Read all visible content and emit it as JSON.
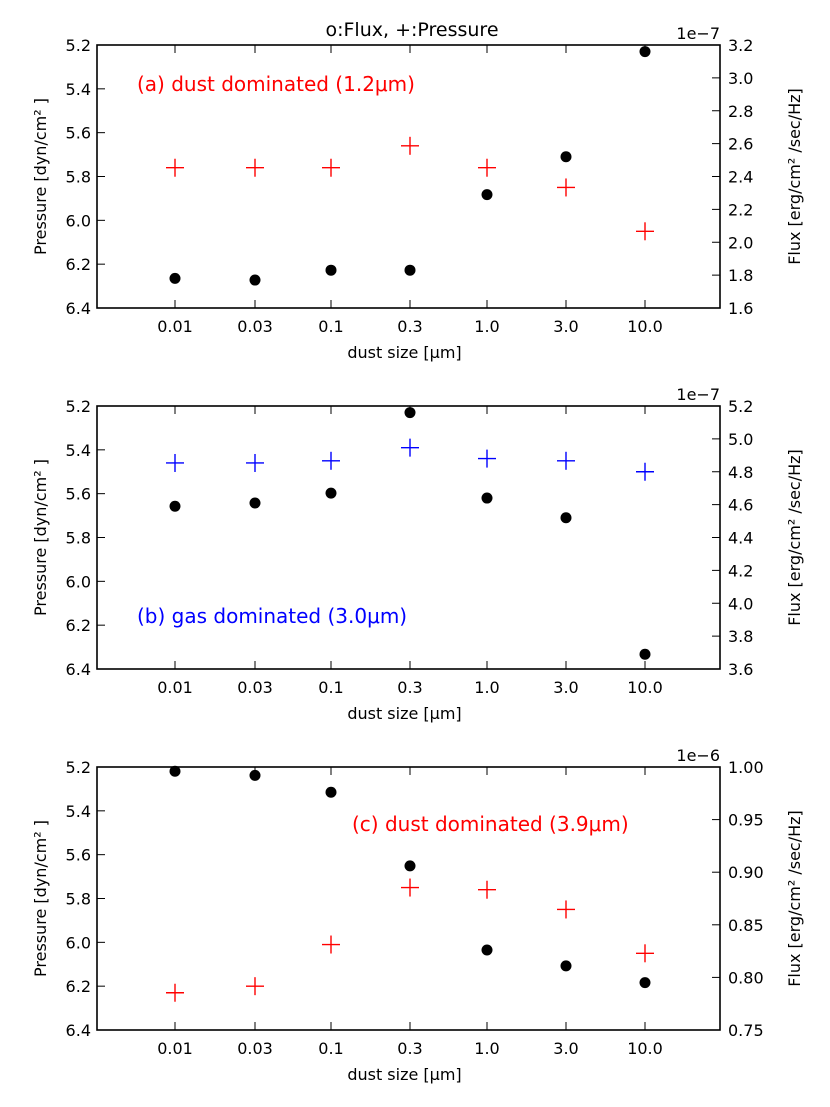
{
  "figure_title": "o:Flux, +:Pressure",
  "chart_data": [
    {
      "type": "scatter",
      "annotation": "(a) dust dominated (1.2μm)",
      "annotation_color": "#ff0000",
      "xlabel": "dust size [μm]",
      "categories": [
        "0.01",
        "0.03",
        "0.1",
        "0.3",
        "1.0",
        "3.0",
        "10.0"
      ],
      "left_axis": {
        "label": "Pressure [dyn/cm² ]",
        "range": [
          6.4,
          5.2
        ],
        "inverted": true,
        "ticks": [
          "5.2",
          "5.4",
          "5.6",
          "5.8",
          "6.0",
          "6.2",
          "6.4"
        ]
      },
      "right_axis": {
        "label": "Flux [erg/cm² /sec/Hz]",
        "range": [
          1.6,
          3.2
        ],
        "ticks": [
          "1.6",
          "1.8",
          "2.0",
          "2.2",
          "2.4",
          "2.6",
          "2.8",
          "3.0",
          "3.2"
        ],
        "offset_text": "1e−7"
      },
      "series": [
        {
          "marker": "+",
          "color": "#ff0000",
          "axis": "left",
          "values": [
            5.76,
            5.76,
            5.76,
            5.66,
            5.76,
            5.85,
            6.05
          ]
        },
        {
          "marker": "o",
          "color": "#000000",
          "axis": "right",
          "values": [
            1.78,
            1.77,
            1.83,
            1.83,
            2.29,
            2.52,
            3.16
          ]
        }
      ]
    },
    {
      "type": "scatter",
      "annotation": "(b) gas dominated (3.0μm)",
      "annotation_color": "#0000ff",
      "xlabel": "dust size [μm]",
      "categories": [
        "0.01",
        "0.03",
        "0.1",
        "0.3",
        "1.0",
        "3.0",
        "10.0"
      ],
      "left_axis": {
        "label": "Pressure [dyn/cm² ]",
        "range": [
          6.4,
          5.2
        ],
        "inverted": true,
        "ticks": [
          "5.2",
          "5.4",
          "5.6",
          "5.8",
          "6.0",
          "6.2",
          "6.4"
        ]
      },
      "right_axis": {
        "label": "Flux [erg/cm² /sec/Hz]",
        "range": [
          3.6,
          5.2
        ],
        "ticks": [
          "3.6",
          "3.8",
          "4.0",
          "4.2",
          "4.4",
          "4.6",
          "4.8",
          "5.0",
          "5.2"
        ],
        "offset_text": "1e−7"
      },
      "series": [
        {
          "marker": "+",
          "color": "#0000ff",
          "axis": "left",
          "values": [
            5.46,
            5.46,
            5.45,
            5.39,
            5.44,
            5.45,
            5.5
          ]
        },
        {
          "marker": "o",
          "color": "#000000",
          "axis": "right",
          "values": [
            4.59,
            4.61,
            4.67,
            5.16,
            4.64,
            4.52,
            3.69
          ]
        }
      ]
    },
    {
      "type": "scatter",
      "annotation": "(c) dust dominated (3.9μm)",
      "annotation_color": "#ff0000",
      "xlabel": "dust size [μm]",
      "categories": [
        "0.01",
        "0.03",
        "0.1",
        "0.3",
        "1.0",
        "3.0",
        "10.0"
      ],
      "left_axis": {
        "label": "Pressure [dyn/cm² ]",
        "range": [
          6.4,
          5.2
        ],
        "inverted": true,
        "ticks": [
          "5.2",
          "5.4",
          "5.6",
          "5.8",
          "6.0",
          "6.2",
          "6.4"
        ]
      },
      "right_axis": {
        "label": "Flux [erg/cm² /sec/Hz]",
        "range": [
          0.75,
          1.0
        ],
        "ticks": [
          "0.75",
          "0.80",
          "0.85",
          "0.90",
          "0.95",
          "1.00"
        ],
        "offset_text": "1e−6"
      },
      "series": [
        {
          "marker": "+",
          "color": "#ff0000",
          "axis": "left",
          "values": [
            6.23,
            6.2,
            6.01,
            5.75,
            5.76,
            5.85,
            6.05
          ]
        },
        {
          "marker": "o",
          "color": "#000000",
          "axis": "right",
          "values": [
            0.996,
            0.992,
            0.976,
            0.906,
            0.826,
            0.811,
            0.795
          ]
        }
      ]
    }
  ]
}
